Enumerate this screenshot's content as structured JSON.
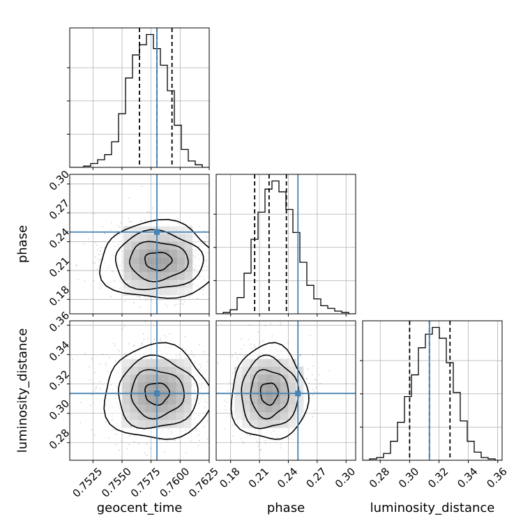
{
  "chart_data": {
    "type": "corner",
    "parameters": [
      {
        "name": "geocent_time",
        "label": "geocent_time",
        "range": [
          0.7505,
          0.7625
        ],
        "ticks": [
          0.7525,
          0.755,
          0.7575,
          0.76,
          0.7625
        ],
        "tick_labels": [
          "0.7525",
          "0.7550",
          "0.7575",
          "0.7600",
          "0.7625"
        ],
        "truth": 0.758,
        "quantiles": [
          0.7565,
          0.758,
          0.7593
        ],
        "hist_bins": [
          0,
          0,
          1,
          3,
          6,
          10,
          20,
          42,
          70,
          88,
          96,
          104,
          93,
          80,
          60,
          33,
          14,
          5,
          2,
          0
        ]
      },
      {
        "name": "phase",
        "label": "phase",
        "range": [
          0.165,
          0.31
        ],
        "ticks": [
          0.18,
          0.21,
          0.24,
          0.27,
          0.3
        ],
        "tick_labels": [
          "0.18",
          "0.21",
          "0.24",
          "0.27",
          "0.30"
        ],
        "truth": 0.25,
        "quantiles": [
          0.205,
          0.22,
          0.238
        ],
        "hist_bins": [
          0,
          1,
          3,
          12,
          30,
          55,
          75,
          92,
          98,
          90,
          77,
          60,
          38,
          21,
          11,
          6,
          4,
          2,
          1,
          0
        ]
      },
      {
        "name": "luminosity_distance",
        "label": "luminosity_distance",
        "range": [
          0.268,
          0.363
        ],
        "ticks": [
          0.28,
          0.3,
          0.32,
          0.34,
          0.36
        ],
        "tick_labels": [
          "0.28",
          "0.30",
          "0.32",
          "0.34",
          "0.36"
        ],
        "truth": 0.3135,
        "quantiles": [
          0.3,
          0.3135,
          0.3275
        ],
        "hist_bins": [
          0,
          1,
          2,
          5,
          14,
          28,
          47,
          63,
          83,
          93,
          98,
          90,
          72,
          50,
          29,
          14,
          6,
          2,
          1,
          0
        ]
      }
    ],
    "pairs": [
      {
        "x": "geocent_time",
        "y": "phase",
        "center": [
          0.7581,
          0.22
        ],
        "spread": [
          0.0021,
          0.0168
        ]
      },
      {
        "x": "geocent_time",
        "y": "luminosity_distance",
        "center": [
          0.758,
          0.3135
        ],
        "spread": [
          0.0019,
          0.0135
        ]
      },
      {
        "x": "phase",
        "y": "luminosity_distance",
        "center": [
          0.22,
          0.3135
        ],
        "spread": [
          0.0165,
          0.0135
        ]
      }
    ],
    "truth_color": "#4682b4",
    "hist_color": "#000000",
    "grid": true
  }
}
